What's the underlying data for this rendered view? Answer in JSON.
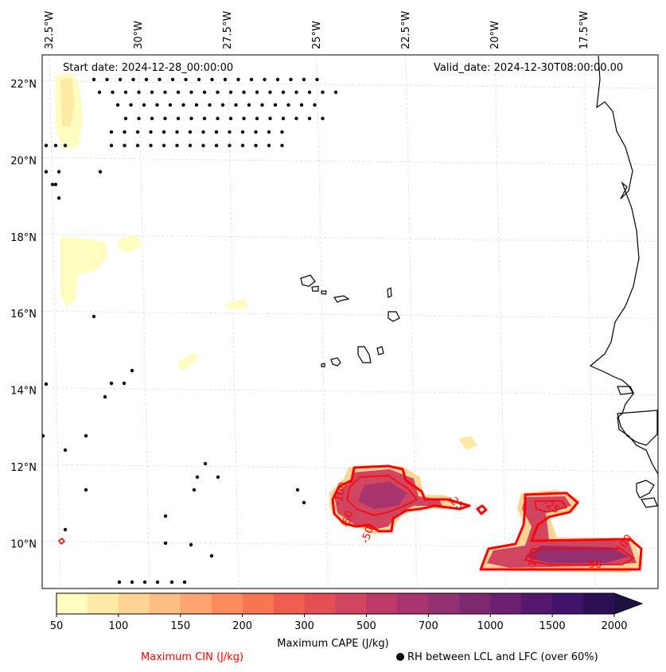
{
  "map": {
    "start_date": "Start date: 2024-12-28_00:00:00",
    "valid_date": "Valid_date: 2024-12-30T08:00:00.00",
    "lon_labels": [
      "32.5°W",
      "30°W",
      "27.5°W",
      "25°W",
      "22.5°W",
      "20°W",
      "17.5°W"
    ],
    "lat_labels": [
      "22°N",
      "20°N",
      "18°N",
      "16°N",
      "14°N",
      "12°N",
      "10°N"
    ],
    "lon_values": [
      -32.5,
      -30,
      -27.5,
      -25,
      -22.5,
      -20,
      -17.5
    ],
    "lat_values": [
      22,
      20,
      18,
      16,
      14,
      12,
      10
    ],
    "extent": {
      "lon_min": -32.5,
      "lon_max": -16,
      "lat_min": 9,
      "lat_max": 22.7
    },
    "gridlines": true
  },
  "colorbar": {
    "label": "Maximum CAPE (J/kg)",
    "ticks": [
      "50",
      "100",
      "150",
      "200",
      "300",
      "500",
      "700",
      "1000",
      "1500",
      "2000"
    ],
    "colors": [
      "#fffcc0",
      "#fee9a5",
      "#fed494",
      "#febd82",
      "#fda570",
      "#fc8b5e",
      "#f87551",
      "#f05f4d",
      "#e34f53",
      "#d14560",
      "#bc3a69",
      "#a8346d",
      "#93306f",
      "#7e2870",
      "#6a206f",
      "#55186d",
      "#40146a",
      "#2c0f55",
      "#1c1140"
    ],
    "extend": "max"
  },
  "legend": {
    "cin_label": "Maximum CIN (J/kg)",
    "cin_color": "#ff0000",
    "rh_label": "RH between LCL and LFC (over 60%)"
  },
  "contour_labels": {
    "east_blob": [
      "-100",
      "-50",
      "-100"
    ],
    "west_blob": [
      "-100",
      "-50",
      "-25",
      "-50"
    ],
    "upper_right": [
      "-25"
    ]
  }
}
